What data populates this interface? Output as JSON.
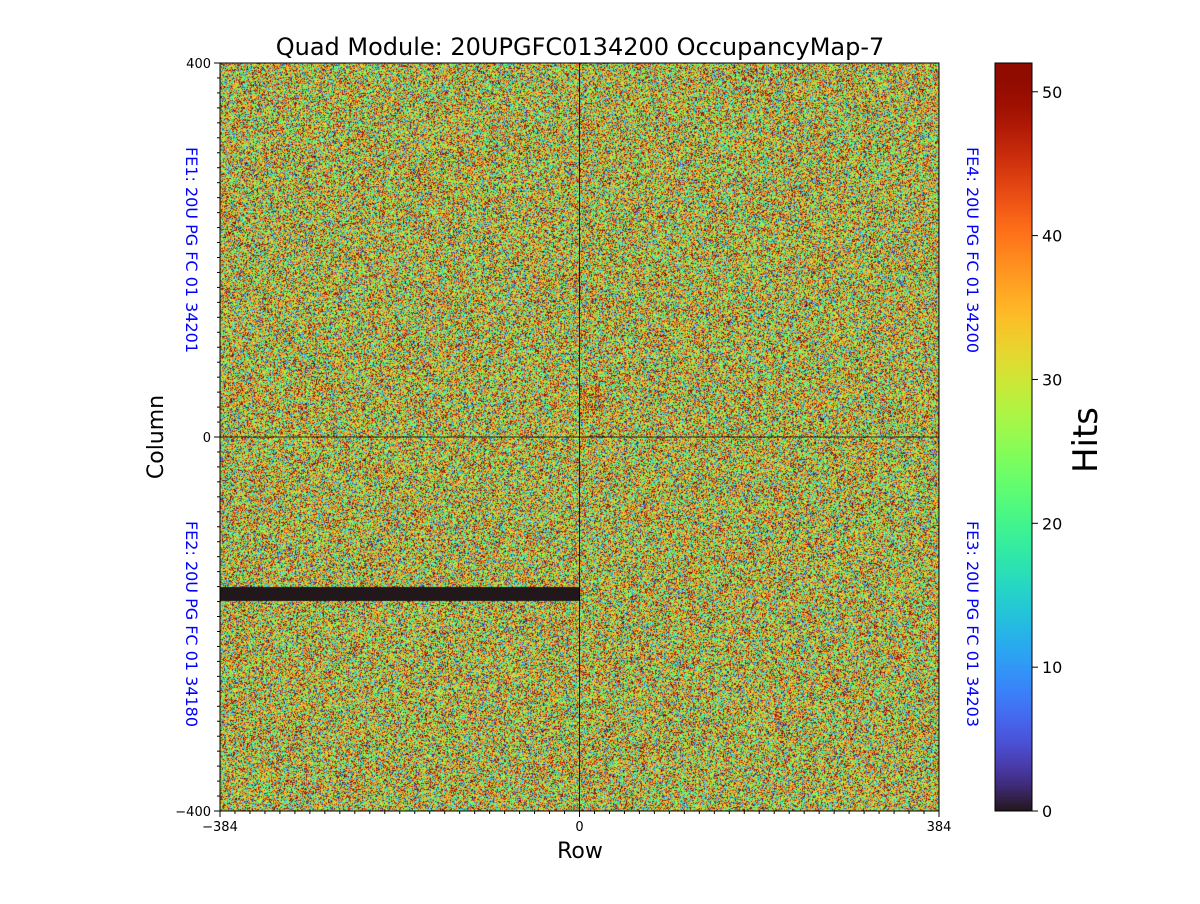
{
  "chart_data": {
    "type": "heatmap",
    "title": "Quad Module: 20UPGFC0134200 OccupancyMap-7",
    "xlabel": "Row",
    "ylabel": "Column",
    "xlim": [
      -384,
      384
    ],
    "ylim": [
      -400,
      400
    ],
    "x_ticks": [
      "−384",
      "0",
      "384"
    ],
    "y_ticks": [
      "−400",
      "0",
      "400"
    ],
    "colorbar": {
      "label": "Hits",
      "range": [
        0,
        52
      ],
      "ticks": [
        "0",
        "10",
        "20",
        "30",
        "40",
        "50"
      ],
      "colormap": "turbo"
    },
    "chip_labels": [
      {
        "name": "FE1",
        "text": "FE1: 20U PG FC 01 34201",
        "quadrant": "top-left",
        "side": "left"
      },
      {
        "name": "FE2",
        "text": "FE2: 20U PG FC 01 34180",
        "quadrant": "bottom-left",
        "side": "left"
      },
      {
        "name": "FE3",
        "text": "FE3: 20U PG FC 01 34203",
        "quadrant": "bottom-right",
        "side": "right"
      },
      {
        "name": "FE4",
        "text": "FE4: 20U PG FC 01 34200",
        "quadrant": "top-right",
        "side": "right"
      }
    ],
    "label_color": "#0000ff",
    "dead_region": {
      "chip": "FE2",
      "x_range": [
        -384,
        0
      ],
      "y_range": [
        -175,
        -160
      ],
      "hits": 0
    },
    "hot_region": {
      "chip": "FE4",
      "x_range": [
        0,
        25
      ],
      "y_range": [
        20,
        55
      ]
    },
    "grid": false
  }
}
